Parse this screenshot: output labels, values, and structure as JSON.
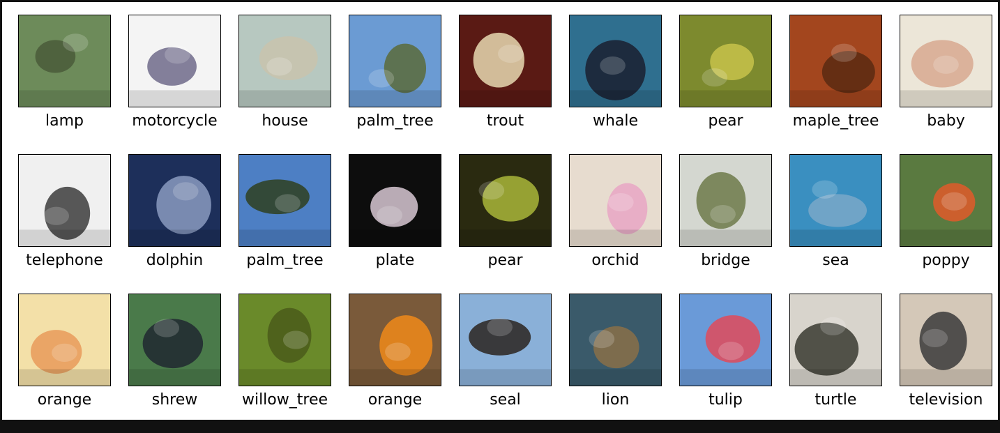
{
  "images": [
    {
      "label": "lamp",
      "icon": "lamp-image",
      "bg": "#6d8b5a",
      "fg": "#4a5a3a"
    },
    {
      "label": "motorcycle",
      "icon": "motorcycle-image",
      "bg": "#f4f4f4",
      "fg": "#6f6a8a"
    },
    {
      "label": "house",
      "icon": "house-image",
      "bg": "#b7c8c0",
      "fg": "#c9c3ad"
    },
    {
      "label": "palm_tree",
      "icon": "palm-tree-image",
      "bg": "#6b9bd3",
      "fg": "#5b6b3a"
    },
    {
      "label": "trout",
      "icon": "trout-image",
      "bg": "#5a1a14",
      "fg": "#e8d9b0"
    },
    {
      "label": "whale",
      "icon": "whale-image",
      "bg": "#2f6f8f",
      "fg": "#1a2030"
    },
    {
      "label": "pear",
      "icon": "pear-image",
      "bg": "#7d8a2e",
      "fg": "#c7c24a"
    },
    {
      "label": "maple_tree",
      "icon": "maple-tree-image",
      "bg": "#a3461e",
      "fg": "#5a2a12"
    },
    {
      "label": "baby",
      "icon": "baby-image",
      "bg": "#ece6d8",
      "fg": "#d8a890"
    },
    {
      "label": "telephone",
      "icon": "telephone-image",
      "bg": "#f0f0f0",
      "fg": "#3c3c3c"
    },
    {
      "label": "dolphin",
      "icon": "dolphin-image",
      "bg": "#1d2f5a",
      "fg": "#8a9ac0"
    },
    {
      "label": "palm_tree",
      "icon": "palm-tree-image",
      "bg": "#4d7fc4",
      "fg": "#2f4020"
    },
    {
      "label": "plate",
      "icon": "plate-image",
      "bg": "#0d0d0d",
      "fg": "#d8c8d4"
    },
    {
      "label": "pear",
      "icon": "pear-image",
      "bg": "#2a2a10",
      "fg": "#a9b63a"
    },
    {
      "label": "orchid",
      "icon": "orchid-image",
      "bg": "#e7dccf",
      "fg": "#e8a6c4"
    },
    {
      "label": "bridge",
      "icon": "bridge-image",
      "bg": "#d4d7d0",
      "fg": "#6d7a4a"
    },
    {
      "label": "sea",
      "icon": "sea-image",
      "bg": "#3a8fc0",
      "fg": "#7aa8c8"
    },
    {
      "label": "poppy",
      "icon": "poppy-image",
      "bg": "#5a7a40",
      "fg": "#e05a2a"
    },
    {
      "label": "orange",
      "icon": "orange-image",
      "bg": "#f3e0a8",
      "fg": "#e89a5a"
    },
    {
      "label": "shrew",
      "icon": "shrew-image",
      "bg": "#4a7a4a",
      "fg": "#202830"
    },
    {
      "label": "willow_tree",
      "icon": "willow-tree-image",
      "bg": "#6a8a2a",
      "fg": "#4a5a1a"
    },
    {
      "label": "orange",
      "icon": "orange-image",
      "bg": "#7a5a3a",
      "fg": "#f08a1a"
    },
    {
      "label": "seal",
      "icon": "seal-image",
      "bg": "#8ab0d8",
      "fg": "#2a2420"
    },
    {
      "label": "lion",
      "icon": "lion-image",
      "bg": "#3a5a6a",
      "fg": "#8a7048"
    },
    {
      "label": "tulip",
      "icon": "tulip-image",
      "bg": "#6a9ad8",
      "fg": "#e04a5a"
    },
    {
      "label": "turtle",
      "icon": "turtle-image",
      "bg": "#d8d4cc",
      "fg": "#3a3a30"
    },
    {
      "label": "television",
      "icon": "television-image",
      "bg": "#d4c8b8",
      "fg": "#3a3a3a"
    }
  ]
}
